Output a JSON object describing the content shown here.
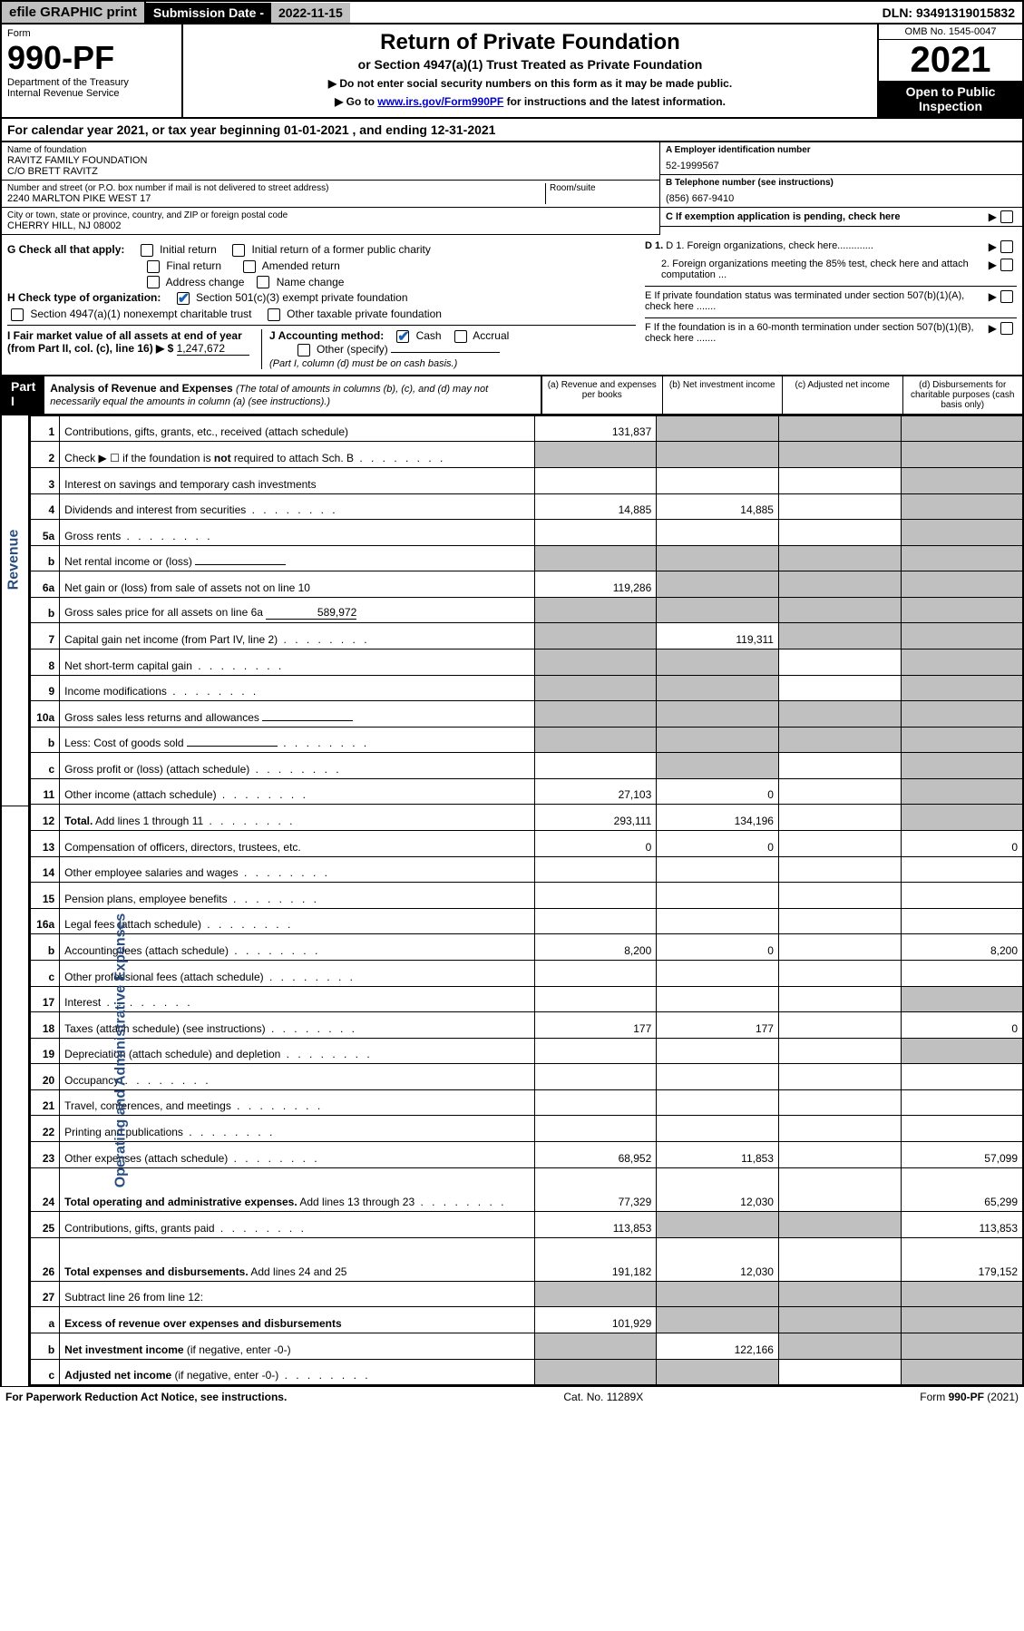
{
  "topbar": {
    "efile": "efile GRAPHIC print",
    "subdate_label": "Submission Date - ",
    "subdate_val": "2022-11-15",
    "dln": "DLN: 93491319015832"
  },
  "header": {
    "form_word": "Form",
    "form_no": "990-PF",
    "dept1": "Department of the Treasury",
    "dept2": "Internal Revenue Service",
    "title": "Return of Private Foundation",
    "sub1": "or Section 4947(a)(1) Trust Treated as Private Foundation",
    "bullet1": "▶ Do not enter social security numbers on this form as it may be made public.",
    "bullet2_pre": "▶ Go to ",
    "bullet2_link": "www.irs.gov/Form990PF",
    "bullet2_post": " for instructions and the latest information.",
    "omb": "OMB No. 1545-0047",
    "year": "2021",
    "open": "Open to Public Inspection"
  },
  "calyear": "For calendar year 2021, or tax year beginning 01-01-2021                             , and ending 12-31-2021",
  "info": {
    "name_lbl": "Name of foundation",
    "name1": "RAVITZ FAMILY FOUNDATION",
    "name2": "C/O BRETT RAVITZ",
    "addr_lbl": "Number and street (or P.O. box number if mail is not delivered to street address)",
    "addr": "2240 MARLTON PIKE WEST 17",
    "room_lbl": "Room/suite",
    "city_lbl": "City or town, state or province, country, and ZIP or foreign postal code",
    "city": "CHERRY HILL, NJ  08002",
    "ein_lbl": "A Employer identification number",
    "ein": "52-1999567",
    "tel_lbl": "B Telephone number (see instructions)",
    "tel": "(856) 667-9410",
    "c": "C If exemption application is pending, check here",
    "d1": "D 1. Foreign organizations, check here.............",
    "d2": "2. Foreign organizations meeting the 85% test, check here and attach computation ...",
    "e": "E  If private foundation status was terminated under section 507(b)(1)(A), check here .......",
    "f": "F  If the foundation is in a 60-month termination under section 507(b)(1)(B), check here .......",
    "g": "G Check all that apply:",
    "g_opts": [
      "Initial return",
      "Initial return of a former public charity",
      "Final return",
      "Amended return",
      "Address change",
      "Name change"
    ],
    "h": "H Check type of organization:",
    "h1": "Section 501(c)(3) exempt private foundation",
    "h2": "Section 4947(a)(1) nonexempt charitable trust",
    "h3": "Other taxable private foundation",
    "i": "I Fair market value of all assets at end of year (from Part II, col. (c), line 16) ▶ $",
    "i_val": "1,247,672",
    "j": "J Accounting method:",
    "j_cash": "Cash",
    "j_acc": "Accrual",
    "j_other": "Other (specify)",
    "j_note": "(Part I, column (d) must be on cash basis.)"
  },
  "part1": {
    "label": "Part I",
    "title": "Analysis of Revenue and Expenses",
    "title_note": "(The total of amounts in columns (b), (c), and (d) may not necessarily equal the amounts in column (a) (see instructions).)",
    "col_a": "(a)   Revenue and expenses per books",
    "col_b": "(b)   Net investment income",
    "col_c": "(c)   Adjusted net income",
    "col_d": "(d)  Disbursements for charitable purposes (cash basis only)"
  },
  "vert_labels": {
    "revenue": "Revenue",
    "expenses": "Operating and Administrative Expenses"
  },
  "rows": [
    {
      "ln": "1",
      "desc": "Contributions, gifts, grants, etc., received (attach schedule)",
      "a": "131,837",
      "b": "",
      "c": "",
      "d": "",
      "shade": [
        "b",
        "c",
        "d"
      ]
    },
    {
      "ln": "2",
      "desc": "Check ▶ ☐ if the foundation is <b>not</b> required to attach Sch. B",
      "a": "",
      "b": "",
      "c": "",
      "d": "",
      "shade": [
        "a",
        "b",
        "c",
        "d"
      ],
      "dots": true
    },
    {
      "ln": "3",
      "desc": "Interest on savings and temporary cash investments",
      "a": "",
      "b": "",
      "c": "",
      "d": "",
      "shade": [
        "d"
      ]
    },
    {
      "ln": "4",
      "desc": "Dividends and interest from securities",
      "a": "14,885",
      "b": "14,885",
      "c": "",
      "d": "",
      "shade": [
        "d"
      ],
      "dots": true
    },
    {
      "ln": "5a",
      "desc": "Gross rents",
      "a": "",
      "b": "",
      "c": "",
      "d": "",
      "shade": [
        "d"
      ],
      "dots": true
    },
    {
      "ln": "b",
      "desc": "Net rental income or (loss)",
      "a": "",
      "b": "",
      "c": "",
      "d": "",
      "shade": [
        "a",
        "b",
        "c",
        "d"
      ],
      "inline_field": true
    },
    {
      "ln": "6a",
      "desc": "Net gain or (loss) from sale of assets not on line 10",
      "a": "119,286",
      "b": "",
      "c": "",
      "d": "",
      "shade": [
        "b",
        "c",
        "d"
      ]
    },
    {
      "ln": "b",
      "desc": "Gross sales price for all assets on line 6a",
      "a": "",
      "b": "",
      "c": "",
      "d": "",
      "shade": [
        "a",
        "b",
        "c",
        "d"
      ],
      "inline_val": "589,972"
    },
    {
      "ln": "7",
      "desc": "Capital gain net income (from Part IV, line 2)",
      "a": "",
      "b": "119,311",
      "c": "",
      "d": "",
      "shade": [
        "a",
        "c",
        "d"
      ],
      "dots": true
    },
    {
      "ln": "8",
      "desc": "Net short-term capital gain",
      "a": "",
      "b": "",
      "c": "",
      "d": "",
      "shade": [
        "a",
        "b",
        "d"
      ],
      "dots": true
    },
    {
      "ln": "9",
      "desc": "Income modifications",
      "a": "",
      "b": "",
      "c": "",
      "d": "",
      "shade": [
        "a",
        "b",
        "d"
      ],
      "dots": true
    },
    {
      "ln": "10a",
      "desc": "Gross sales less returns and allowances",
      "a": "",
      "b": "",
      "c": "",
      "d": "",
      "shade": [
        "a",
        "b",
        "c",
        "d"
      ],
      "inline_field": true
    },
    {
      "ln": "b",
      "desc": "Less: Cost of goods sold",
      "a": "",
      "b": "",
      "c": "",
      "d": "",
      "shade": [
        "a",
        "b",
        "c",
        "d"
      ],
      "inline_field": true,
      "dots": true
    },
    {
      "ln": "c",
      "desc": "Gross profit or (loss) (attach schedule)",
      "a": "",
      "b": "",
      "c": "",
      "d": "",
      "shade": [
        "b",
        "d"
      ],
      "dots": true
    },
    {
      "ln": "11",
      "desc": "Other income (attach schedule)",
      "a": "27,103",
      "b": "0",
      "c": "",
      "d": "",
      "shade": [
        "d"
      ],
      "dots": true
    },
    {
      "ln": "12",
      "desc": "<b>Total.</b> Add lines 1 through 11",
      "a": "293,111",
      "b": "134,196",
      "c": "",
      "d": "",
      "shade": [
        "d"
      ],
      "dots": true
    },
    {
      "ln": "13",
      "desc": "Compensation of officers, directors, trustees, etc.",
      "a": "0",
      "b": "0",
      "c": "",
      "d": "0"
    },
    {
      "ln": "14",
      "desc": "Other employee salaries and wages",
      "a": "",
      "b": "",
      "c": "",
      "d": "",
      "dots": true
    },
    {
      "ln": "15",
      "desc": "Pension plans, employee benefits",
      "a": "",
      "b": "",
      "c": "",
      "d": "",
      "dots": true
    },
    {
      "ln": "16a",
      "desc": "Legal fees (attach schedule)",
      "a": "",
      "b": "",
      "c": "",
      "d": "",
      "dots": true
    },
    {
      "ln": "b",
      "desc": "Accounting fees (attach schedule)",
      "a": "8,200",
      "b": "0",
      "c": "",
      "d": "8,200",
      "dots": true
    },
    {
      "ln": "c",
      "desc": "Other professional fees (attach schedule)",
      "a": "",
      "b": "",
      "c": "",
      "d": "",
      "dots": true
    },
    {
      "ln": "17",
      "desc": "Interest",
      "a": "",
      "b": "",
      "c": "",
      "d": "",
      "shade": [
        "d"
      ],
      "dots": true
    },
    {
      "ln": "18",
      "desc": "Taxes (attach schedule) (see instructions)",
      "a": "177",
      "b": "177",
      "c": "",
      "d": "0",
      "dots": true
    },
    {
      "ln": "19",
      "desc": "Depreciation (attach schedule) and depletion",
      "a": "",
      "b": "",
      "c": "",
      "d": "",
      "shade": [
        "d"
      ],
      "dots": true
    },
    {
      "ln": "20",
      "desc": "Occupancy",
      "a": "",
      "b": "",
      "c": "",
      "d": "",
      "dots": true
    },
    {
      "ln": "21",
      "desc": "Travel, conferences, and meetings",
      "a": "",
      "b": "",
      "c": "",
      "d": "",
      "dots": true
    },
    {
      "ln": "22",
      "desc": "Printing and publications",
      "a": "",
      "b": "",
      "c": "",
      "d": "",
      "dots": true
    },
    {
      "ln": "23",
      "desc": "Other expenses (attach schedule)",
      "a": "68,952",
      "b": "11,853",
      "c": "",
      "d": "57,099",
      "dots": true
    },
    {
      "ln": "24",
      "desc": "<b>Total operating and administrative expenses.</b> Add lines 13 through 23",
      "a": "77,329",
      "b": "12,030",
      "c": "",
      "d": "65,299",
      "dots": true,
      "tall": true
    },
    {
      "ln": "25",
      "desc": "Contributions, gifts, grants paid",
      "a": "113,853",
      "b": "",
      "c": "",
      "d": "113,853",
      "shade": [
        "b",
        "c"
      ],
      "dots": true
    },
    {
      "ln": "26",
      "desc": "<b>Total expenses and disbursements.</b> Add lines 24 and 25",
      "a": "191,182",
      "b": "12,030",
      "c": "",
      "d": "179,152",
      "tall": true
    },
    {
      "ln": "27",
      "desc": "Subtract line 26 from line 12:",
      "a": "",
      "b": "",
      "c": "",
      "d": "",
      "shade": [
        "a",
        "b",
        "c",
        "d"
      ]
    },
    {
      "ln": "a",
      "desc": "<b>Excess of revenue over expenses and disbursements</b>",
      "a": "101,929",
      "b": "",
      "c": "",
      "d": "",
      "shade": [
        "b",
        "c",
        "d"
      ]
    },
    {
      "ln": "b",
      "desc": "<b>Net investment income</b> (if negative, enter -0-)",
      "a": "",
      "b": "122,166",
      "c": "",
      "d": "",
      "shade": [
        "a",
        "c",
        "d"
      ]
    },
    {
      "ln": "c",
      "desc": "<b>Adjusted net income</b> (if negative, enter -0-)",
      "a": "",
      "b": "",
      "c": "",
      "d": "",
      "shade": [
        "a",
        "b",
        "d"
      ],
      "dots": true
    }
  ],
  "footer": {
    "left": "For Paperwork Reduction Act Notice, see instructions.",
    "mid": "Cat. No. 11289X",
    "right": "Form 990-PF (2021)"
  }
}
